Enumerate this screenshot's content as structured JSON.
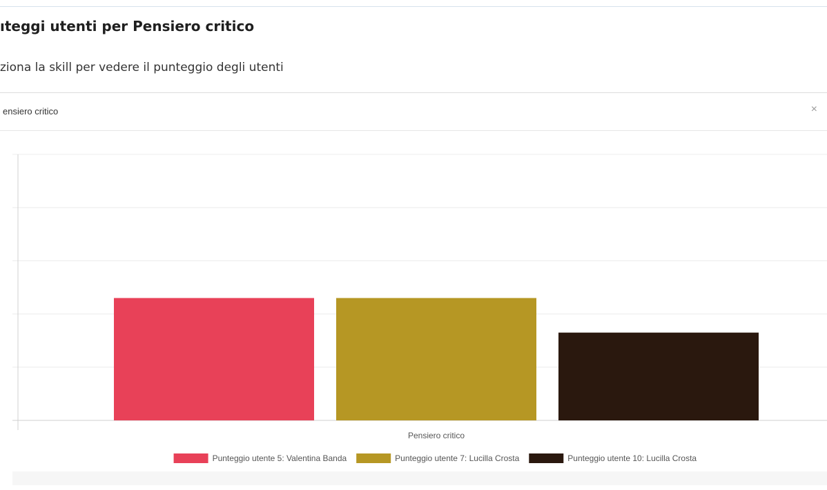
{
  "header": {
    "title": "ıteggi utenti per Pensiero critico",
    "subtitle": "ziona la skill per vedere il punteggio degli utenti"
  },
  "skill_select": {
    "value": "ensiero critico",
    "clear_label": "×"
  },
  "chart_data": {
    "type": "bar",
    "categories": [
      "Pensiero critico"
    ],
    "series": [
      {
        "name": "Punteggio utente 5: Valentina Banda",
        "values": [
          2.3
        ],
        "color": "#e84158"
      },
      {
        "name": "Punteggio utente 7: Lucilla Crosta",
        "values": [
          2.3
        ],
        "color": "#b69724"
      },
      {
        "name": "Punteggio utente 10: Lucilla  Crosta",
        "values": [
          1.65
        ],
        "color": "#2a180e"
      }
    ],
    "ylim": [
      0,
      5
    ],
    "grid": true,
    "legend": "bottom",
    "xlabel": "",
    "ylabel": ""
  }
}
